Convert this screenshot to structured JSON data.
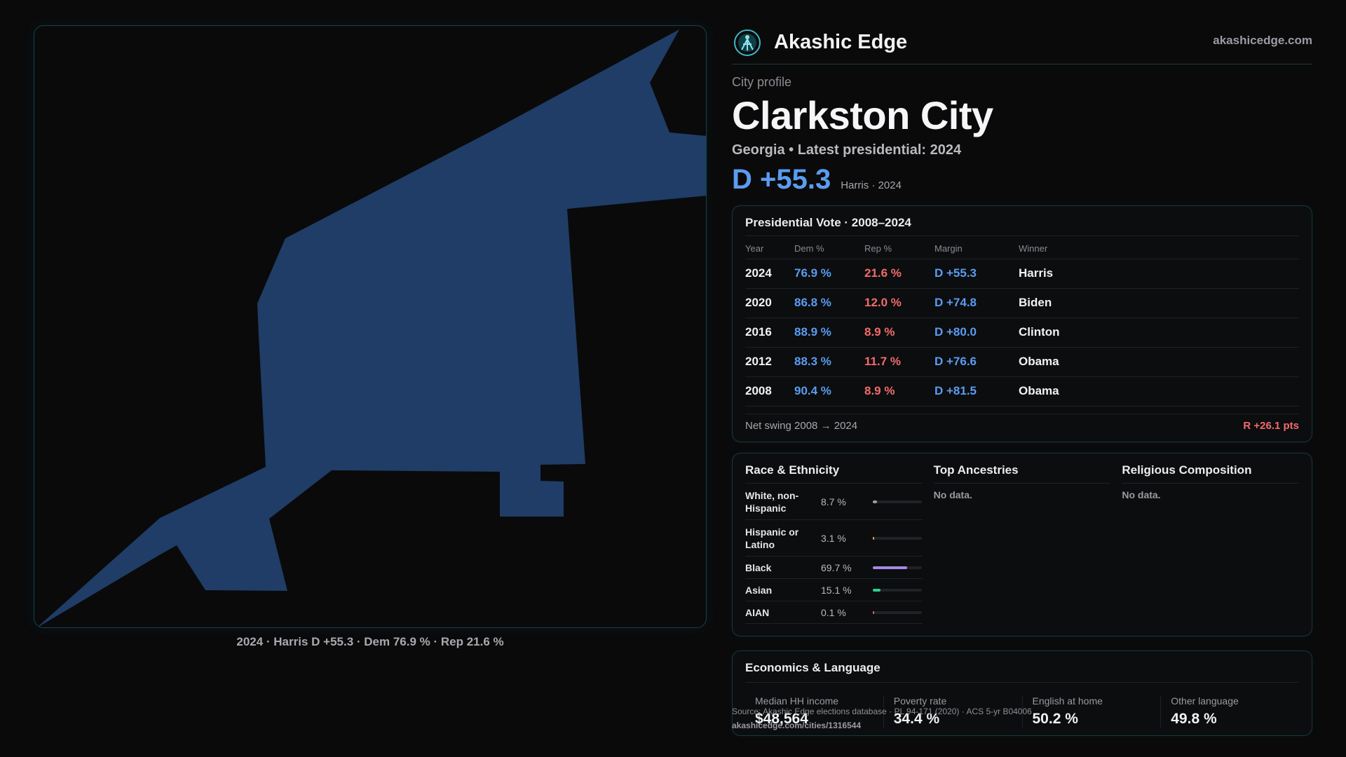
{
  "brand": {
    "name": "Akashic Edge",
    "url": "akashicedge.com"
  },
  "profile": {
    "kicker": "City profile",
    "city": "Clarkston City",
    "subtitle": "Georgia • Latest presidential: 2024",
    "margin": "D +55.3",
    "margin_note": "Harris · 2024"
  },
  "map": {
    "fill_color": "#1f3d66",
    "caption": "2024 · Harris D +55.3 · Dem 76.9 % · Rep 21.6 %"
  },
  "vote": {
    "title": "Presidential Vote · 2008–2024",
    "headers": [
      "Year",
      "Dem %",
      "Rep %",
      "Margin",
      "Winner"
    ],
    "rows": [
      {
        "year": "2024",
        "dem": "76.9 %",
        "rep": "21.6 %",
        "margin": "D +55.3",
        "winner": "Harris"
      },
      {
        "year": "2020",
        "dem": "86.8 %",
        "rep": "12.0 %",
        "margin": "D +74.8",
        "winner": "Biden"
      },
      {
        "year": "2016",
        "dem": "88.9 %",
        "rep": "8.9 %",
        "margin": "D +80.0",
        "winner": "Clinton"
      },
      {
        "year": "2012",
        "dem": "88.3 %",
        "rep": "11.7 %",
        "margin": "D +76.6",
        "winner": "Obama"
      },
      {
        "year": "2008",
        "dem": "90.4 %",
        "rep": "8.9 %",
        "margin": "D +81.5",
        "winner": "Obama"
      }
    ],
    "swing_label": "Net swing 2008 → 2024",
    "swing_value": "R +26.1 pts",
    "colors": {
      "dem": "#5b9cf0",
      "rep": "#f26b6b"
    }
  },
  "race": {
    "title": "Race & Ethnicity",
    "rows": [
      {
        "label": "White, non-Hispanic",
        "pct": "8.7 %",
        "value": 8.7,
        "color": "#9aa0a8"
      },
      {
        "label": "Hispanic or Latino",
        "pct": "3.1 %",
        "value": 3.1,
        "color": "#f0a43a"
      },
      {
        "label": "Black",
        "pct": "69.7 %",
        "value": 69.7,
        "color": "#a48ae6"
      },
      {
        "label": "Asian",
        "pct": "15.1 %",
        "value": 15.1,
        "color": "#2fcf8e"
      },
      {
        "label": "AIAN",
        "pct": "0.1 %",
        "value": 0.1,
        "color": "#d96b6b"
      }
    ]
  },
  "ancestries": {
    "title": "Top Ancestries",
    "empty": "No data."
  },
  "religion": {
    "title": "Religious Composition",
    "empty": "No data."
  },
  "economics": {
    "title": "Economics & Language",
    "cells": [
      {
        "label": "Median HH income",
        "value": "$48,564"
      },
      {
        "label": "Poverty rate",
        "value": "34.4 %"
      },
      {
        "label": "English at home",
        "value": "50.2 %"
      },
      {
        "label": "Other language",
        "value": "49.8 %"
      }
    ]
  },
  "footer": {
    "source": "Source: Akashic Edge elections database · PL 94-171 (2020) · ACS 5-yr B04006",
    "url": "akashicedge.com/cities/1316544"
  }
}
